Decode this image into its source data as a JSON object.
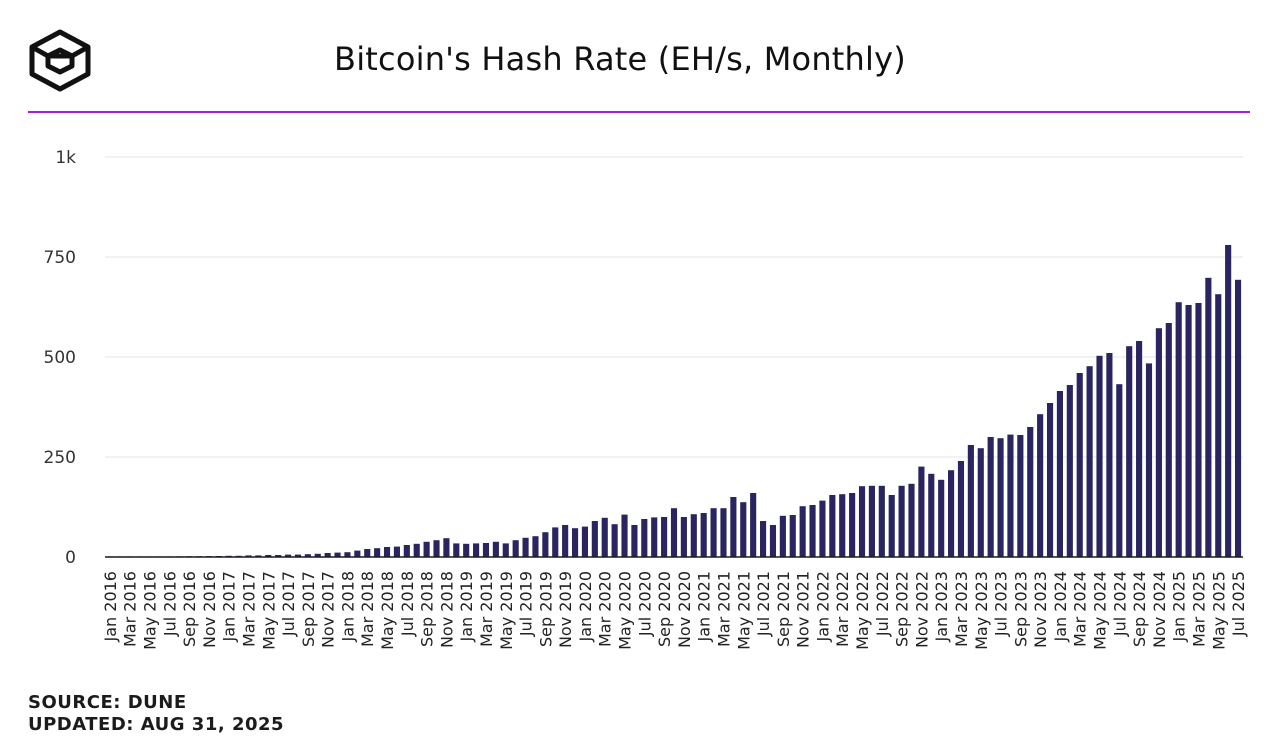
{
  "header": {
    "title": "Bitcoin's Hash Rate (EH/s, Monthly)",
    "logo_icon": "cube-logo-icon",
    "accent_color": "#a020e0"
  },
  "footer": {
    "source": "SOURCE: DUNE",
    "updated": "UPDATED: AUG 31, 2025"
  },
  "chart_data": {
    "type": "bar",
    "title": "Bitcoin's Hash Rate (EH/s, Monthly)",
    "xlabel": "",
    "ylabel": "",
    "ylim": [
      0,
      1000
    ],
    "yticks": [
      0,
      250,
      500,
      750,
      1000
    ],
    "ytick_labels": [
      "0",
      "250",
      "500",
      "750",
      "1k"
    ],
    "grid": true,
    "bar_color": "#2a2560",
    "start_month": "2016-01",
    "x_tick_labels": [
      "Jan 2016",
      "Mar 2016",
      "May 2016",
      "Jul 2016",
      "Sep 2016",
      "Nov 2016",
      "Jan 2017",
      "Mar 2017",
      "May 2017",
      "Jul 2017",
      "Sep 2017",
      "Nov 2017",
      "Jan 2018",
      "Mar 2018",
      "May 2018",
      "Jul 2018",
      "Sep 2018",
      "Nov 2018",
      "Jan 2019",
      "Mar 2019",
      "May 2019",
      "Jul 2019",
      "Sep 2019",
      "Nov 2019",
      "Jan 2020",
      "Mar 2020",
      "May 2020",
      "Jul 2020",
      "Sep 2020",
      "Nov 2020",
      "Jan 2021",
      "Mar 2021",
      "May 2021",
      "Jul 2021",
      "Sep 2021",
      "Nov 2021",
      "Jan 2022",
      "Mar 2022",
      "May 2022",
      "Jul 2022",
      "Sep 2022",
      "Nov 2022",
      "Jan 2023",
      "Mar 2023",
      "May 2023",
      "Jul 2023",
      "Sep 2023",
      "Nov 2023",
      "Jan 2024",
      "Mar 2024",
      "May 2024",
      "Jul 2024",
      "Sep 2024",
      "Nov 2024",
      "Jan 2025",
      "Mar 2025",
      "May 2025",
      "Jul 2025"
    ],
    "categories": [
      "Jan 2016",
      "Feb 2016",
      "Mar 2016",
      "Apr 2016",
      "May 2016",
      "Jun 2016",
      "Jul 2016",
      "Aug 2016",
      "Sep 2016",
      "Oct 2016",
      "Nov 2016",
      "Dec 2016",
      "Jan 2017",
      "Feb 2017",
      "Mar 2017",
      "Apr 2017",
      "May 2017",
      "Jun 2017",
      "Jul 2017",
      "Aug 2017",
      "Sep 2017",
      "Oct 2017",
      "Nov 2017",
      "Dec 2017",
      "Jan 2018",
      "Feb 2018",
      "Mar 2018",
      "Apr 2018",
      "May 2018",
      "Jun 2018",
      "Jul 2018",
      "Aug 2018",
      "Sep 2018",
      "Oct 2018",
      "Nov 2018",
      "Dec 2018",
      "Jan 2019",
      "Feb 2019",
      "Mar 2019",
      "Apr 2019",
      "May 2019",
      "Jun 2019",
      "Jul 2019",
      "Aug 2019",
      "Sep 2019",
      "Oct 2019",
      "Nov 2019",
      "Dec 2019",
      "Jan 2020",
      "Feb 2020",
      "Mar 2020",
      "Apr 2020",
      "May 2020",
      "Jun 2020",
      "Jul 2020",
      "Aug 2020",
      "Sep 2020",
      "Oct 2020",
      "Nov 2020",
      "Dec 2020",
      "Jan 2021",
      "Feb 2021",
      "Mar 2021",
      "Apr 2021",
      "May 2021",
      "Jun 2021",
      "Jul 2021",
      "Aug 2021",
      "Sep 2021",
      "Oct 2021",
      "Nov 2021",
      "Dec 2021",
      "Jan 2022",
      "Feb 2022",
      "Mar 2022",
      "Apr 2022",
      "May 2022",
      "Jun 2022",
      "Jul 2022",
      "Aug 2022",
      "Sep 2022",
      "Oct 2022",
      "Nov 2022",
      "Dec 2022",
      "Jan 2023",
      "Feb 2023",
      "Mar 2023",
      "Apr 2023",
      "May 2023",
      "Jun 2023",
      "Jul 2023",
      "Aug 2023",
      "Sep 2023",
      "Oct 2023",
      "Nov 2023",
      "Dec 2023",
      "Jan 2024",
      "Feb 2024",
      "Mar 2024",
      "Apr 2024",
      "May 2024",
      "Jun 2024",
      "Jul 2024",
      "Aug 2024",
      "Sep 2024",
      "Oct 2024",
      "Nov 2024",
      "Dec 2024",
      "Jan 2025",
      "Feb 2025",
      "Mar 2025",
      "Apr 2025",
      "May 2025",
      "Jun 2025",
      "Jul 2025"
    ],
    "values": [
      1,
      1,
      1,
      1,
      1.5,
      1.5,
      1.5,
      1.8,
      2,
      2,
      2.2,
      2.5,
      3,
      3,
      4,
      4,
      5,
      5,
      6,
      6,
      7,
      8,
      10,
      11,
      12,
      16,
      20,
      22,
      25,
      26,
      30,
      33,
      38,
      42,
      47,
      34,
      33,
      34,
      35,
      38,
      34,
      42,
      48,
      52,
      62,
      74,
      80,
      72,
      76,
      90,
      98,
      82,
      106,
      80,
      95,
      99,
      100,
      122,
      100,
      107,
      110,
      122,
      122,
      150,
      137,
      160,
      90,
      80,
      103,
      105,
      127,
      130,
      141,
      155,
      157,
      160,
      177,
      178,
      178,
      155,
      178,
      183,
      226,
      208,
      193,
      217,
      240,
      280,
      272,
      300,
      297,
      306,
      305,
      325,
      357,
      385,
      415,
      430,
      460,
      477,
      503,
      510,
      432,
      527,
      540,
      484,
      572,
      585,
      637,
      630,
      635,
      698,
      657,
      780,
      693
    ]
  }
}
